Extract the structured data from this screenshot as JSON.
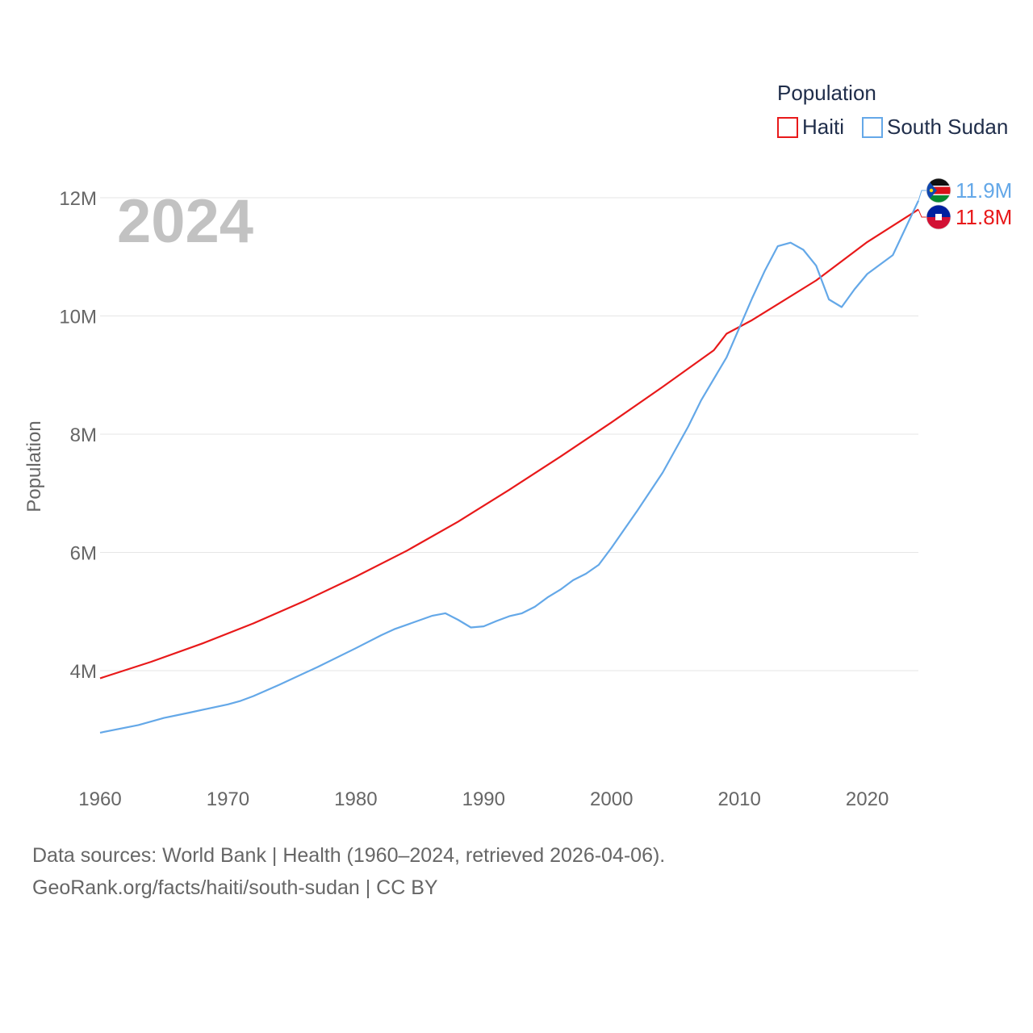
{
  "chart_data": {
    "type": "line",
    "title": "Population",
    "year_label": "2024",
    "ylabel": "Population",
    "xlabel": "",
    "xlim": [
      1960,
      2024
    ],
    "ylim": [
      2200000,
      12700000
    ],
    "y_ticks": [
      {
        "value": 4000000,
        "label": "4M"
      },
      {
        "value": 6000000,
        "label": "6M"
      },
      {
        "value": 8000000,
        "label": "8M"
      },
      {
        "value": 10000000,
        "label": "10M"
      },
      {
        "value": 12000000,
        "label": "12M"
      }
    ],
    "x_ticks": [
      {
        "value": 1960,
        "label": "1960"
      },
      {
        "value": 1970,
        "label": "1970"
      },
      {
        "value": 1980,
        "label": "1980"
      },
      {
        "value": 1990,
        "label": "1990"
      },
      {
        "value": 2000,
        "label": "2000"
      },
      {
        "value": 2010,
        "label": "2010"
      },
      {
        "value": 2020,
        "label": "2020"
      }
    ],
    "grid": true,
    "legend_position": "top-right",
    "series": [
      {
        "name": "Haiti",
        "color": "#e8191a",
        "flag": "haiti-flag-icon",
        "end_label": "11.8M",
        "x": [
          1960,
          1964,
          1968,
          1972,
          1976,
          1980,
          1984,
          1988,
          1992,
          1996,
          2000,
          2004,
          2008,
          2009,
          2011,
          2016,
          2020,
          2024
        ],
        "y": [
          3870000,
          4150000,
          4460000,
          4800000,
          5180000,
          5590000,
          6030000,
          6520000,
          7060000,
          7620000,
          8200000,
          8800000,
          9420000,
          9700000,
          9930000,
          10600000,
          11250000,
          11800000
        ]
      },
      {
        "name": "South Sudan",
        "color": "#64a8e8",
        "flag": "south-sudan-flag-icon",
        "end_label": "11.9M",
        "x": [
          1960,
          1963,
          1965,
          1967,
          1970,
          1971,
          1972,
          1974,
          1977,
          1980,
          1982,
          1983,
          1986,
          1987,
          1988,
          1989,
          1990,
          1991,
          1992,
          1993,
          1994,
          1995,
          1996,
          1997,
          1998,
          1999,
          2000,
          2002,
          2004,
          2006,
          2007,
          2009,
          2011,
          2012,
          2013,
          2014,
          2015,
          2016,
          2017,
          2018,
          2019,
          2020,
          2022,
          2024
        ],
        "y": [
          2950000,
          3080000,
          3200000,
          3290000,
          3430000,
          3490000,
          3570000,
          3760000,
          4060000,
          4380000,
          4600000,
          4700000,
          4930000,
          4970000,
          4860000,
          4730000,
          4750000,
          4840000,
          4920000,
          4970000,
          5080000,
          5240000,
          5370000,
          5530000,
          5640000,
          5790000,
          6080000,
          6700000,
          7350000,
          8130000,
          8570000,
          9300000,
          10300000,
          10770000,
          11180000,
          11240000,
          11120000,
          10850000,
          10280000,
          10150000,
          10450000,
          10710000,
          11030000,
          11950000
        ]
      }
    ]
  },
  "footer": {
    "source_line": "Data sources: World Bank | Health (1960–2024, retrieved 2026-04-06).",
    "link_line": "GeoRank.org/facts/haiti/south-sudan | CC BY"
  }
}
